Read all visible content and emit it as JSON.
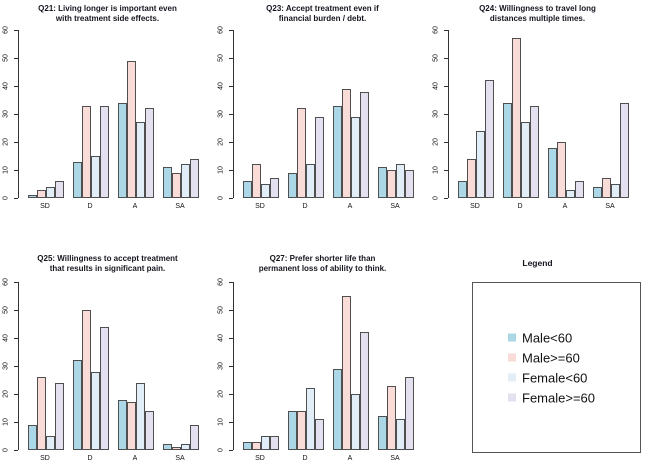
{
  "figure": {
    "background": "#ffffff"
  },
  "colors": {
    "bar_border": "#4f4f4f",
    "axis": "#333333",
    "title_text": "#15151f",
    "tick_text": "#111111"
  },
  "legend": {
    "title": "Legend",
    "items": [
      {
        "label": "Male<60",
        "color": "#ABD7E6"
      },
      {
        "label": "Male>=60",
        "color": "#F9DBD7"
      },
      {
        "label": "Female<60",
        "color": "#E1EEF8"
      },
      {
        "label": "Female>=60",
        "color": "#E4E0F0"
      }
    ]
  },
  "chart_data": [
    {
      "type": "bar",
      "title": "Q21: Living longer is important even with treatment side effects.",
      "title_lines": [
        "Q21: Living longer is important even",
        "with treatment side effects."
      ],
      "categories": [
        "SD",
        "D",
        "A",
        "SA"
      ],
      "series": [
        {
          "name": "Male<60",
          "values": [
            1,
            13,
            34,
            11
          ]
        },
        {
          "name": "Male>=60",
          "values": [
            3,
            33,
            49,
            9
          ]
        },
        {
          "name": "Female<60",
          "values": [
            4,
            15,
            27,
            12
          ]
        },
        {
          "name": "Female>=60",
          "values": [
            6,
            33,
            32,
            14
          ]
        }
      ],
      "ylim": [
        0,
        60
      ],
      "yticks": [
        0,
        10,
        20,
        30,
        40,
        50,
        60
      ],
      "grid": false,
      "legend_position": "separate-panel"
    },
    {
      "type": "bar",
      "title": "Q23: Accept treatment even if financial burden / debt.",
      "title_lines": [
        "Q23: Accept treatment even if",
        "financial burden / debt."
      ],
      "categories": [
        "SD",
        "D",
        "A",
        "SA"
      ],
      "series": [
        {
          "name": "Male<60",
          "values": [
            6,
            9,
            33,
            11
          ]
        },
        {
          "name": "Male>=60",
          "values": [
            12,
            32,
            39,
            10
          ]
        },
        {
          "name": "Female<60",
          "values": [
            5,
            12,
            29,
            12
          ]
        },
        {
          "name": "Female>=60",
          "values": [
            7,
            29,
            38,
            10
          ]
        }
      ],
      "ylim": [
        0,
        60
      ],
      "yticks": [
        0,
        10,
        20,
        30,
        40,
        50,
        60
      ],
      "grid": false,
      "legend_position": "separate-panel"
    },
    {
      "type": "bar",
      "title": "Q24: Willingness to travel long distances multiple times.",
      "title_lines": [
        "Q24: Willingness to travel long",
        "distances multiple times."
      ],
      "categories": [
        "SD",
        "D",
        "A",
        "SA"
      ],
      "series": [
        {
          "name": "Male<60",
          "values": [
            6,
            34,
            18,
            4
          ]
        },
        {
          "name": "Male>=60",
          "values": [
            14,
            57,
            20,
            7
          ]
        },
        {
          "name": "Female<60",
          "values": [
            24,
            27,
            3,
            5
          ]
        },
        {
          "name": "Female>=60",
          "values": [
            42,
            33,
            6,
            34
          ]
        }
      ],
      "ylim": [
        0,
        60
      ],
      "yticks": [
        0,
        10,
        20,
        30,
        40,
        50,
        60
      ],
      "grid": false,
      "legend_position": "separate-panel"
    },
    {
      "type": "bar",
      "title": "Q25: Willingness to accept treatment that results in significant pain.",
      "title_lines": [
        "Q25: Willingness to accept treatment",
        "that results in significant pain."
      ],
      "categories": [
        "SD",
        "D",
        "A",
        "SA"
      ],
      "series": [
        {
          "name": "Male<60",
          "values": [
            9,
            32,
            18,
            2
          ]
        },
        {
          "name": "Male>=60",
          "values": [
            26,
            50,
            17,
            1
          ]
        },
        {
          "name": "Female<60",
          "values": [
            5,
            28,
            24,
            2
          ]
        },
        {
          "name": "Female>=60",
          "values": [
            24,
            44,
            14,
            9
          ]
        }
      ],
      "ylim": [
        0,
        60
      ],
      "yticks": [
        0,
        10,
        20,
        30,
        40,
        50,
        60
      ],
      "grid": false,
      "legend_position": "separate-panel"
    },
    {
      "type": "bar",
      "title": "Q27: Prefer shorter life than permanent loss of ability to think.",
      "title_lines": [
        "Q27: Prefer shorter life than",
        "permanent loss of ability to think."
      ],
      "categories": [
        "SD",
        "D",
        "A",
        "SA"
      ],
      "series": [
        {
          "name": "Male<60",
          "values": [
            3,
            14,
            29,
            12
          ]
        },
        {
          "name": "Male>=60",
          "values": [
            3,
            14,
            55,
            23
          ]
        },
        {
          "name": "Female<60",
          "values": [
            5,
            22,
            20,
            11
          ]
        },
        {
          "name": "Female>=60",
          "values": [
            5,
            11,
            42,
            26
          ]
        }
      ],
      "ylim": [
        0,
        60
      ],
      "yticks": [
        0,
        10,
        20,
        30,
        40,
        50,
        60
      ],
      "grid": false,
      "legend_position": "separate-panel"
    }
  ]
}
